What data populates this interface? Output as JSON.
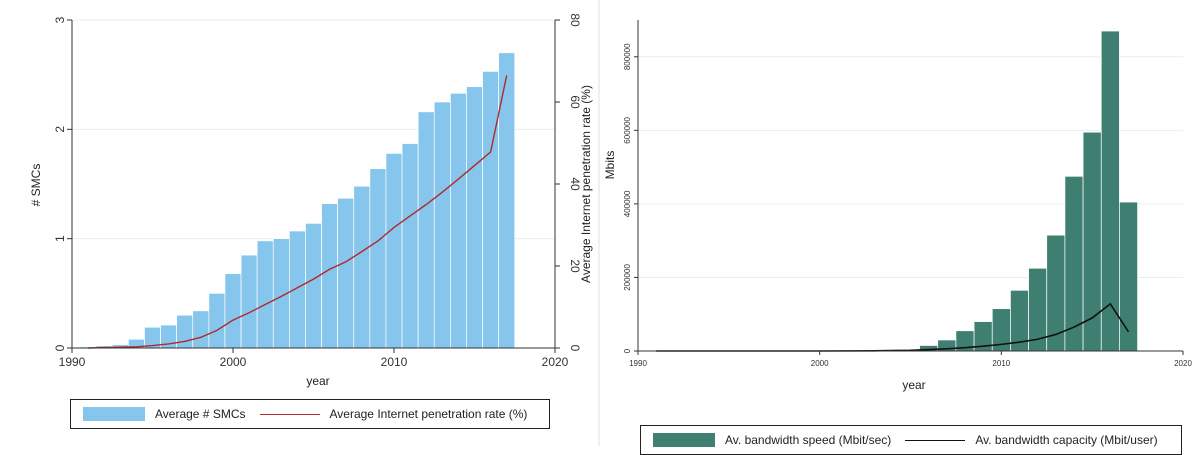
{
  "chart_data": [
    {
      "type": "bar",
      "xlabel": "year",
      "ylabel": "# SMCs",
      "y2label": "Average Internet penetration rate (%)",
      "xlim": [
        1990,
        2020
      ],
      "ylim": [
        0,
        3
      ],
      "y2lim": [
        0,
        80
      ],
      "xticks": [
        "1990",
        "2000",
        "2010",
        "2020"
      ],
      "yticks": [
        "0",
        "1",
        "2",
        "3"
      ],
      "y2ticks": [
        "0",
        "20",
        "40",
        "60",
        "80"
      ],
      "grid": true,
      "legend_position": "bottom",
      "bar_color": "#86c5ec",
      "line_color": "#b02a2a",
      "series": [
        {
          "name": "Average # SMCs",
          "axis": "left",
          "type": "bar",
          "x": [
            1991,
            1992,
            1993,
            1994,
            1995,
            1996,
            1997,
            1998,
            1999,
            2000,
            2001,
            2002,
            2003,
            2004,
            2005,
            2006,
            2007,
            2008,
            2009,
            2010,
            2011,
            2012,
            2013,
            2014,
            2015,
            2016,
            2017
          ],
          "values": [
            0.01,
            0.02,
            0.03,
            0.08,
            0.19,
            0.21,
            0.3,
            0.34,
            0.5,
            0.68,
            0.85,
            0.98,
            1.0,
            1.07,
            1.14,
            1.32,
            1.37,
            1.48,
            1.64,
            1.78,
            1.87,
            2.16,
            2.25,
            2.33,
            2.39,
            2.53,
            2.7
          ]
        },
        {
          "name": "Average Internet penetration rate (%)",
          "axis": "right",
          "type": "line",
          "x": [
            1991,
            1992,
            1993,
            1994,
            1995,
            1996,
            1997,
            1998,
            1999,
            2000,
            2001,
            2002,
            2003,
            2004,
            2005,
            2006,
            2007,
            2008,
            2009,
            2010,
            2011,
            2012,
            2013,
            2014,
            2015,
            2016,
            2017
          ],
          "values": [
            0.0,
            0.1,
            0.2,
            0.3,
            0.6,
            1.0,
            1.6,
            2.6,
            4.3,
            6.8,
            8.6,
            10.6,
            12.6,
            14.7,
            16.8,
            19.2,
            21.0,
            23.5,
            26.1,
            29.4,
            32.2,
            35.0,
            38.0,
            41.2,
            44.5,
            47.8,
            66.5
          ]
        }
      ]
    },
    {
      "type": "bar",
      "xlabel": "year",
      "ylabel": "Mbits",
      "xlim": [
        1990,
        2020
      ],
      "ylim": [
        0,
        900000
      ],
      "xticks": [
        "1990",
        "2000",
        "2010",
        "2020"
      ],
      "yticks": [
        "0",
        "200000",
        "400000",
        "600000",
        "800000"
      ],
      "grid": true,
      "legend_position": "bottom",
      "bar_color": "#3f7f72",
      "line_color": "#111111",
      "series": [
        {
          "name": "Av. bandwidth speed (Mbit/sec)",
          "type": "bar",
          "x": [
            2005,
            2006,
            2007,
            2008,
            2009,
            2010,
            2011,
            2012,
            2013,
            2014,
            2015,
            2016,
            2017
          ],
          "values": [
            3000,
            15000,
            30000,
            55000,
            80000,
            115000,
            165000,
            225000,
            315000,
            475000,
            595000,
            870000,
            405000
          ]
        },
        {
          "name": "Av. bandwidth capacity (Mbit/user)",
          "type": "line",
          "x": [
            1991,
            1995,
            2000,
            2003,
            2005,
            2006,
            2007,
            2008,
            2009,
            2010,
            2011,
            2012,
            2013,
            2014,
            2015,
            2016,
            2017
          ],
          "values": [
            0,
            0,
            0,
            500,
            2000,
            4000,
            6000,
            9000,
            13000,
            18000,
            24000,
            32000,
            45000,
            65000,
            90000,
            128000,
            52000
          ]
        }
      ]
    }
  ]
}
